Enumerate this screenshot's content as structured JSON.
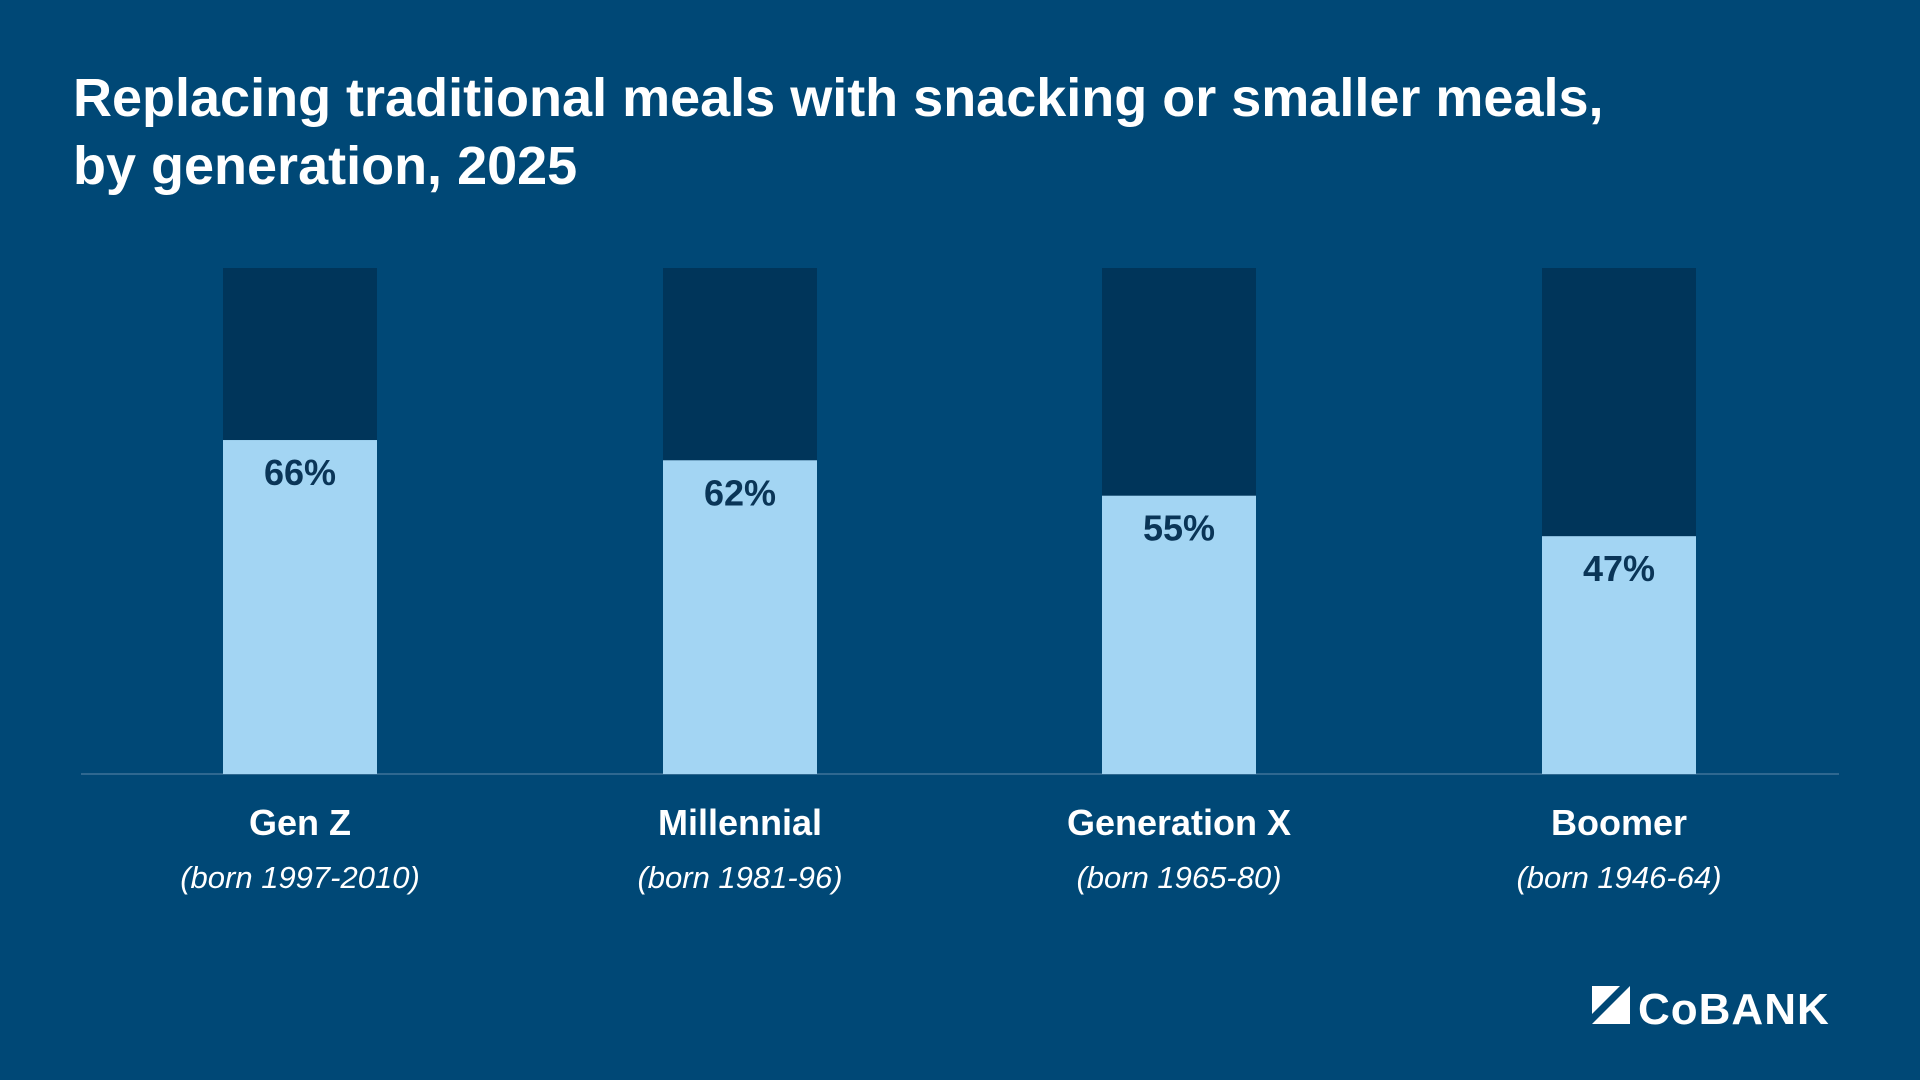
{
  "chart_data": {
    "type": "bar",
    "title": [
      "Replacing traditional meals with snacking or smaller meals,",
      "by generation, 2025"
    ],
    "categories": [
      "Gen Z",
      "Millennial",
      "Generation X",
      "Boomer"
    ],
    "category_notes": [
      "(born 1997-2010)",
      "(born 1981-96)",
      "(born 1965-80)",
      "(born 1946-64)"
    ],
    "values": [
      66,
      62,
      55,
      47
    ],
    "value_labels": [
      "66%",
      "62%",
      "55%",
      "47%"
    ],
    "color": "#a3d5f3",
    "track_color": "#00355a",
    "ylim": [
      0,
      100
    ]
  },
  "logo": "CoBANK"
}
